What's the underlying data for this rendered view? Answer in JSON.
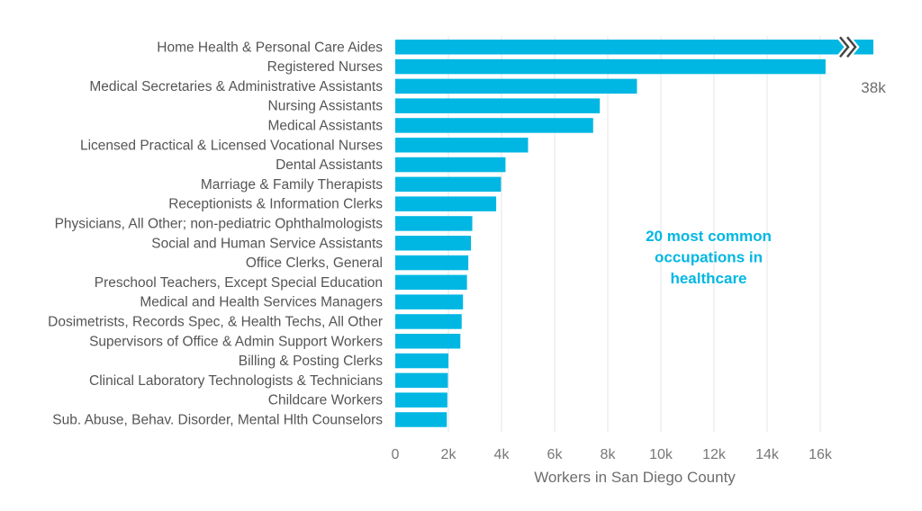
{
  "chart_data": {
    "type": "bar",
    "orientation": "horizontal",
    "title": "",
    "xlabel": "Workers in San Diego County",
    "ylabel": "",
    "xlim": [
      0,
      18000
    ],
    "x_ticks": [
      0,
      2000,
      4000,
      6000,
      8000,
      10000,
      12000,
      14000,
      16000
    ],
    "x_tick_labels": [
      "0",
      "2k",
      "4k",
      "6k",
      "8k",
      "10k",
      "12k",
      "14k",
      "16k"
    ],
    "grid": true,
    "bar_color": "#00b7e3",
    "categories": [
      "Home Health & Personal Care Aides",
      "Registered Nurses",
      "Medical Secretaries & Administrative Assistants",
      "Nursing Assistants",
      "Medical Assistants",
      "Licensed Practical & Licensed Vocational Nurses",
      "Dental Assistants",
      "Marriage & Family Therapists",
      "Receptionists & Information Clerks",
      "Physicians, All Other; non-pediatric Ophthalmologists",
      "Social and Human Service Assistants",
      "Office Clerks, General",
      "Preschool Teachers, Except Special Education",
      "Medical and Health Services Managers",
      "Dosimetrists, Records Spec, & Health Techs, All Other",
      "Supervisors of Office & Admin Support Workers",
      "Billing & Posting Clerks",
      "Clinical Laboratory Technologists & Technicians",
      "Childcare Workers",
      "Sub. Abuse, Behav. Disorder, Mental Hlth Counselors"
    ],
    "values": [
      38000,
      16200,
      9100,
      7700,
      7450,
      5000,
      4150,
      3980,
      3800,
      2900,
      2850,
      2750,
      2700,
      2550,
      2500,
      2450,
      2000,
      1980,
      1960,
      1940
    ],
    "axis_break": {
      "category": "Home Health & Personal Care Aides",
      "label": "38k"
    },
    "annotation": {
      "lines": [
        "20 most common",
        "occupations in",
        "healthcare"
      ]
    }
  }
}
